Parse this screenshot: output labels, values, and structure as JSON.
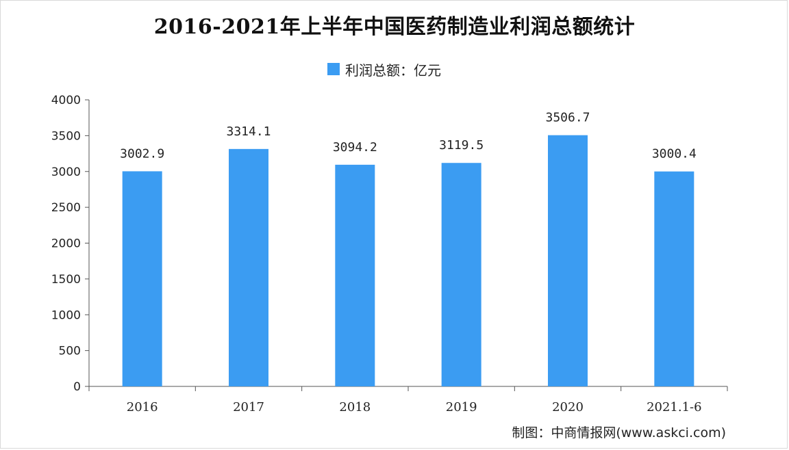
{
  "colors": {
    "bar": "#3b9cf2",
    "axis": "#555555",
    "text": "#222222"
  },
  "credit": "制图：中商情报网(www.askci.com)",
  "chart_data": {
    "type": "bar",
    "title": "2016-2021年上半年中国医药制造业利润总额统计",
    "categories": [
      "2016",
      "2017",
      "2018",
      "2019",
      "2020",
      "2021.1-6"
    ],
    "series": [
      {
        "name": "利润总额：亿元",
        "values": [
          3002.9,
          3314.1,
          3094.2,
          3119.5,
          3506.7,
          3000.4
        ],
        "labels": [
          "3002.9",
          "3314.1",
          "3094.2",
          "3119.5",
          "3506.7",
          "3000.4"
        ]
      }
    ],
    "y_ticks": [
      "0",
      "500",
      "1000",
      "1500",
      "2000",
      "2500",
      "3000",
      "3500",
      "4000"
    ],
    "ylim": [
      0,
      4000
    ],
    "grid": false,
    "legend_position": "top-center",
    "xlabel": "",
    "ylabel": ""
  }
}
